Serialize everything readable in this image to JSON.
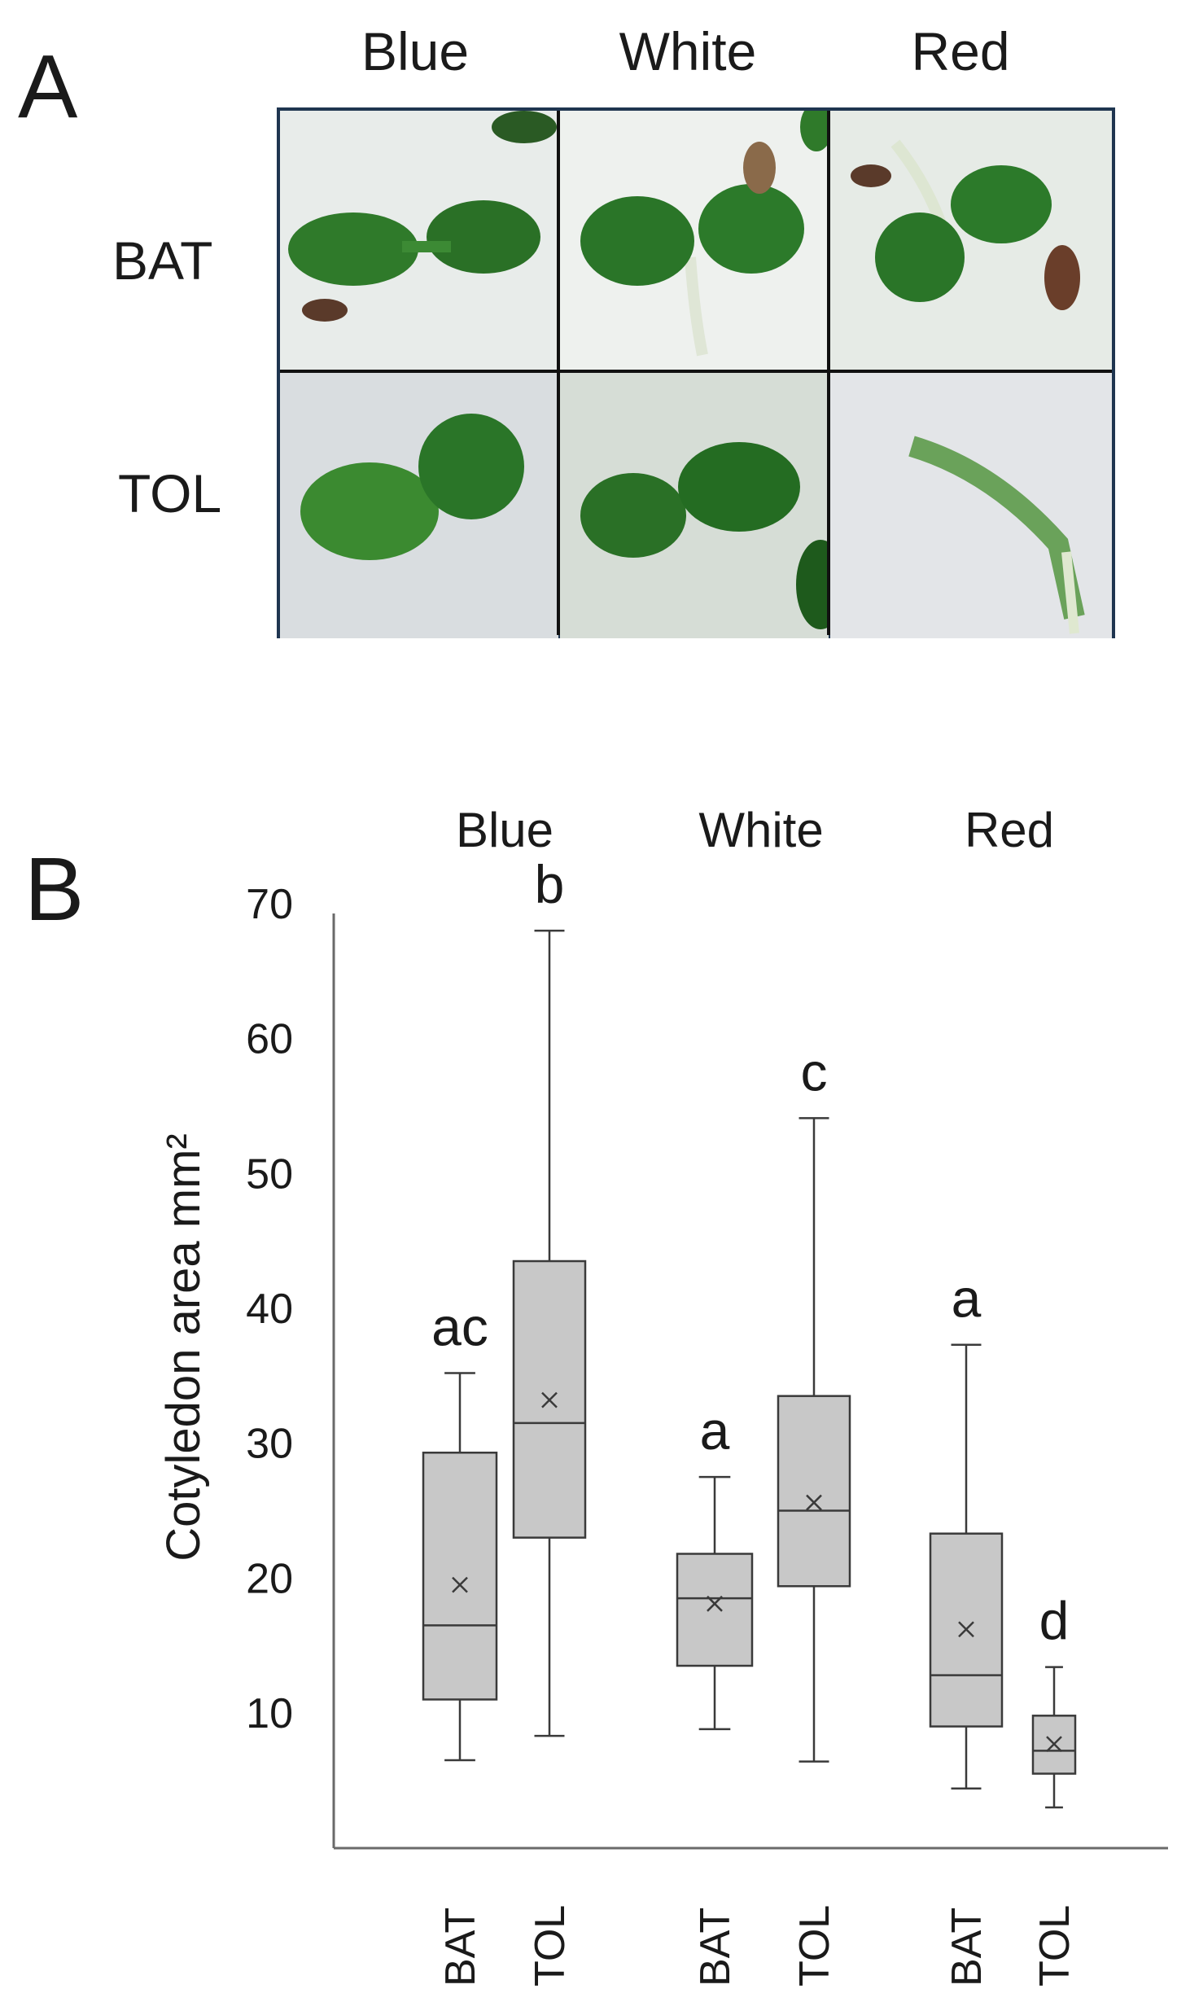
{
  "panel_a": {
    "letter": "A",
    "columns": [
      "Blue",
      "White",
      "Red"
    ],
    "rows": [
      "BAT",
      "TOL"
    ],
    "colors": {
      "frame": "#1f3550",
      "leaf": "#2f7a2a",
      "leaf_dark": "#1e5a1c",
      "seed": "#5a3a2a"
    }
  },
  "panel_b": {
    "letter": "B"
  },
  "chart_data": {
    "type": "box",
    "ylabel": "Cotyledon area mm²",
    "ylim": [
      0,
      70
    ],
    "yticks": [
      10,
      20,
      30,
      40,
      50,
      60,
      70
    ],
    "groups": [
      "Blue",
      "White",
      "Red"
    ],
    "categories": [
      "BAT",
      "TOL",
      "BAT",
      "TOL",
      "BAT",
      "TOL"
    ],
    "boxes": [
      {
        "group": "Blue",
        "genotype": "BAT",
        "min": 6.5,
        "q1": 11,
        "median": 16.5,
        "q3": 29.3,
        "max": 35.2,
        "mean": 19.5,
        "letter": "ac"
      },
      {
        "group": "Blue",
        "genotype": "TOL",
        "min": 8.3,
        "q1": 23,
        "median": 31.5,
        "q3": 43.5,
        "max": 68,
        "mean": 33.2,
        "letter": "b"
      },
      {
        "group": "White",
        "genotype": "BAT",
        "min": 8.8,
        "q1": 13.5,
        "median": 18.5,
        "q3": 21.8,
        "max": 27.5,
        "mean": 18.1,
        "letter": "a"
      },
      {
        "group": "White",
        "genotype": "TOL",
        "min": 6.4,
        "q1": 19.4,
        "median": 25,
        "q3": 33.5,
        "max": 54.1,
        "mean": 25.6,
        "letter": "c"
      },
      {
        "group": "Red",
        "genotype": "BAT",
        "min": 4.4,
        "q1": 9.0,
        "median": 12.8,
        "q3": 23.3,
        "max": 37.3,
        "mean": 16.2,
        "letter": "a"
      },
      {
        "group": "Red",
        "genotype": "TOL",
        "min": 3.0,
        "q1": 5.5,
        "median": 7.2,
        "q3": 9.8,
        "max": 13.4,
        "mean": 7.7,
        "letter": "d"
      }
    ],
    "colors": {
      "box_fill": "#c8c8c8",
      "stroke": "#3a3a3a",
      "axis": "#6a6a6a"
    },
    "grid": false,
    "legend": "none"
  }
}
